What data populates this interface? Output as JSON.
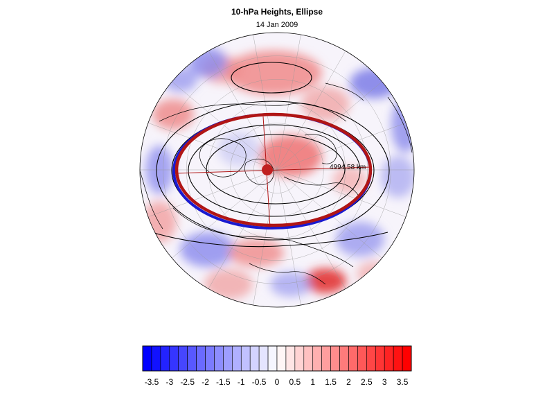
{
  "title": "10-hPa Heights, Ellipse",
  "subtitle": "14 Jan 2009",
  "annotation": "4994.58 km",
  "colorbar": {
    "min": -3.75,
    "max": 3.75,
    "step": 0.25,
    "tick_labels": [
      "-3.5",
      "-3",
      "-2.5",
      "-2",
      "-1.5",
      "-1",
      "-0.5",
      "0",
      "0.5",
      "1",
      "1.5",
      "2",
      "2.5",
      "3",
      "3.5"
    ],
    "tick_values": [
      -3.5,
      -3,
      -2.5,
      -2,
      -1.5,
      -1,
      -0.5,
      0,
      0.5,
      1,
      1.5,
      2,
      2.5,
      3,
      3.5
    ],
    "negative_color": "#0000ff",
    "neutral_color": "#ffffff",
    "positive_color": "#ff0000"
  },
  "colors": {
    "ellipse_outer": "#b01515",
    "ellipse_inner": "#1a1ad0",
    "contour": "#000000",
    "center_marker": "#c02020"
  }
}
